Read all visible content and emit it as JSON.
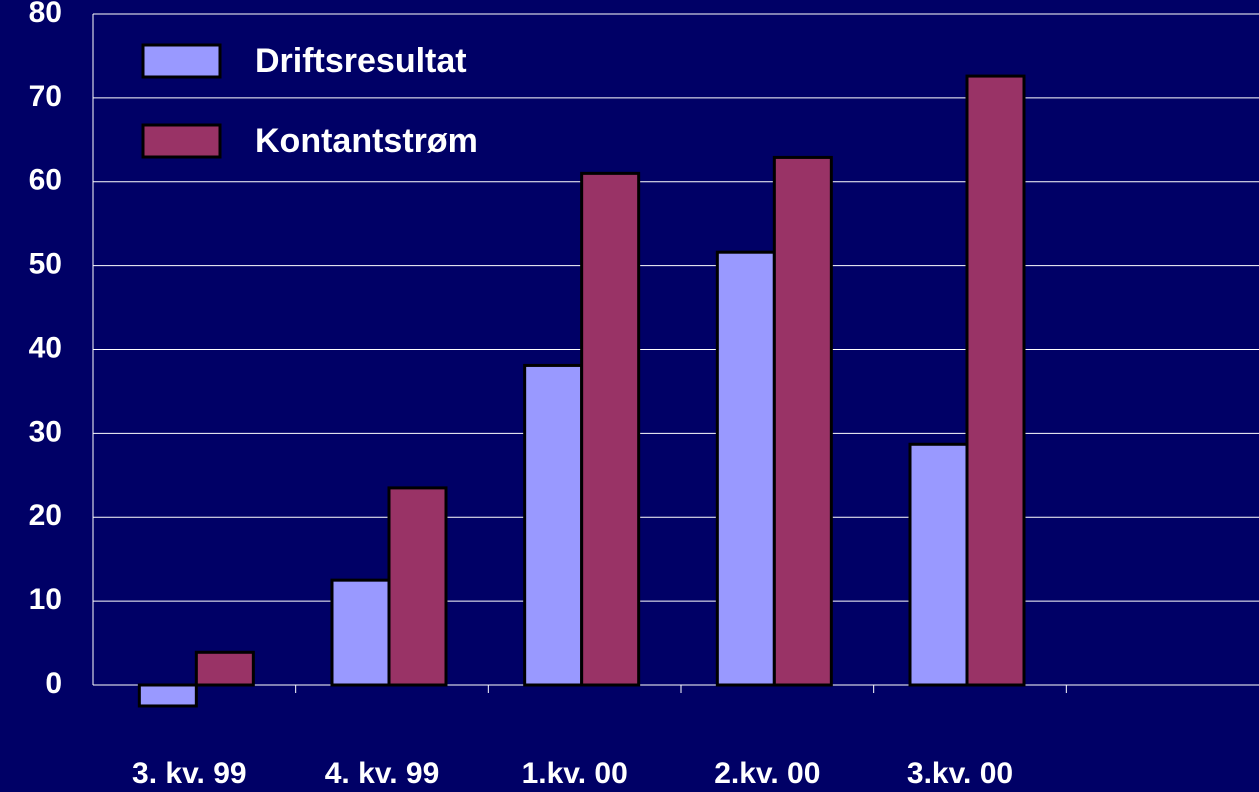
{
  "chart_data": {
    "type": "bar",
    "categories": [
      "3. kv. 99",
      "4. kv. 99",
      "1.kv. 00",
      "2.kv. 00",
      "3.kv. 00",
      null
    ],
    "series": [
      {
        "name": "Driftsresultat",
        "color": "#9999ff",
        "values": [
          -2.5,
          12.5,
          38.1,
          51.6,
          28.7,
          null
        ]
      },
      {
        "name": "Kontantstrøm",
        "color": "#993366",
        "values": [
          3.9,
          23.5,
          61.0,
          62.9,
          72.6,
          null
        ]
      }
    ],
    "ylim": [
      0,
      80
    ],
    "yticks": [
      0,
      10,
      20,
      30,
      40,
      50,
      60,
      70,
      80
    ],
    "grid": true,
    "legend": "top-left"
  }
}
